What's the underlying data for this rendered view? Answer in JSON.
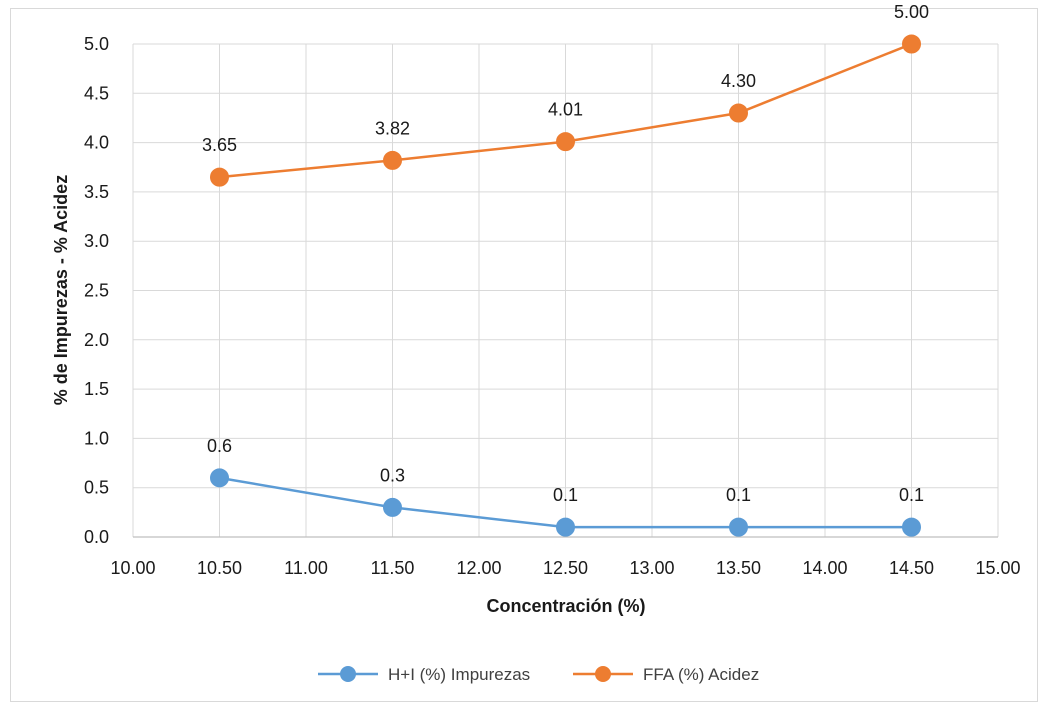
{
  "chart_data": {
    "type": "line",
    "title": "",
    "xlabel": "Concentración (%)",
    "ylabel": "% de Impurezas - % Acidez",
    "xlim": [
      10.0,
      15.0
    ],
    "ylim": [
      0.0,
      5.0
    ],
    "xticks": [
      "10.00",
      "10.50",
      "11.00",
      "11.50",
      "12.00",
      "12.50",
      "13.00",
      "13.50",
      "14.00",
      "14.50",
      "15.00"
    ],
    "yticks": [
      "0.0",
      "0.5",
      "1.0",
      "1.5",
      "2.0",
      "2.5",
      "3.0",
      "3.5",
      "4.0",
      "4.5",
      "5.0"
    ],
    "grid": true,
    "legend_position": "bottom",
    "x": [
      10.5,
      11.5,
      12.5,
      13.5,
      14.5
    ],
    "series": [
      {
        "name": "H+I (%) Impurezas",
        "color": "#5b9bd5",
        "values": [
          0.6,
          0.3,
          0.1,
          0.1,
          0.1
        ],
        "labels": [
          "0.6",
          "0.3",
          "0.1",
          "0.1",
          "0.1"
        ]
      },
      {
        "name": "FFA (%) Acidez",
        "color": "#ed7d31",
        "values": [
          3.65,
          3.82,
          4.01,
          4.3,
          5.0
        ],
        "labels": [
          "3.65",
          "3.82",
          "4.01",
          "4.30",
          "5.00"
        ]
      }
    ]
  }
}
